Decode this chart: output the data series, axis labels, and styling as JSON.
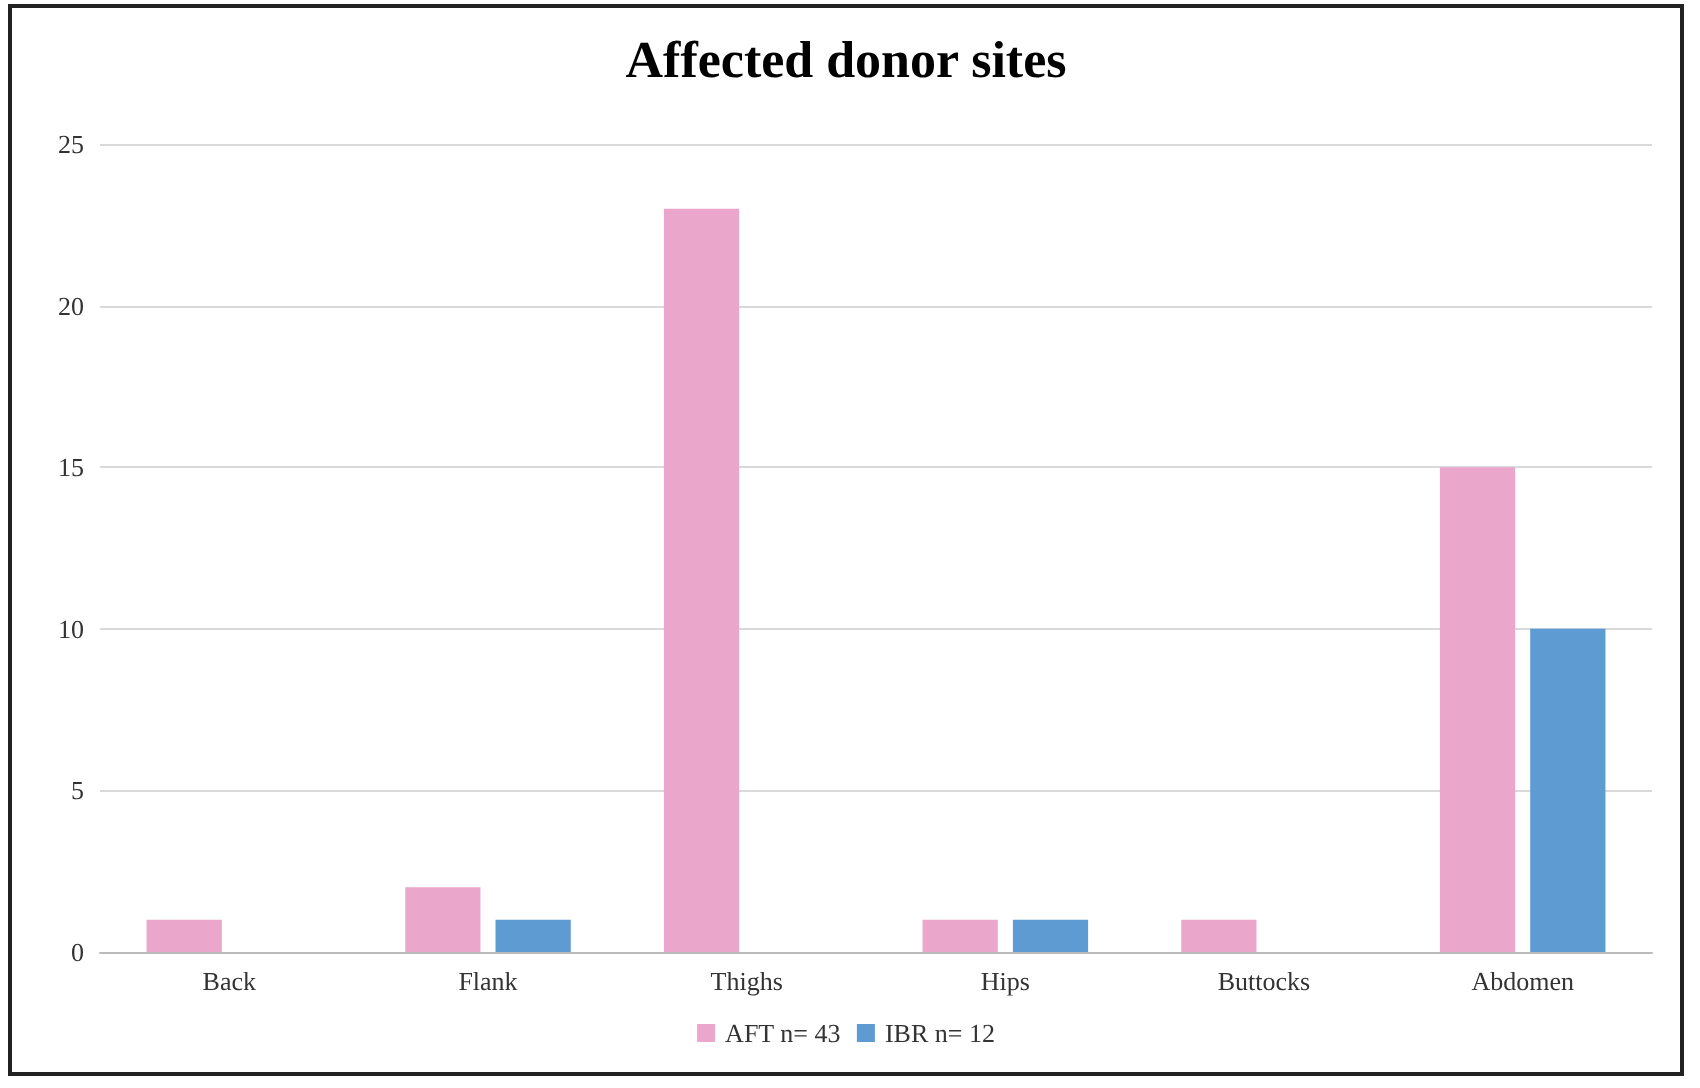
{
  "chart_data": {
    "type": "bar",
    "title": "Affected donor sites",
    "categories": [
      "Back",
      "Flank",
      "Thighs",
      "Hips",
      "Buttocks",
      "Abdomen"
    ],
    "series": [
      {
        "name": "AFT n= 43",
        "color": "#eaa7cb",
        "values": [
          1,
          2,
          23,
          1,
          1,
          15
        ]
      },
      {
        "name": "IBR n= 12",
        "color": "#5f9bd3",
        "values": [
          0,
          1,
          0,
          1,
          0,
          10
        ]
      }
    ],
    "ylim": [
      0,
      25
    ],
    "yticks": [
      0,
      5,
      10,
      15,
      20,
      25
    ],
    "grid": "y",
    "legend": "bottom"
  }
}
